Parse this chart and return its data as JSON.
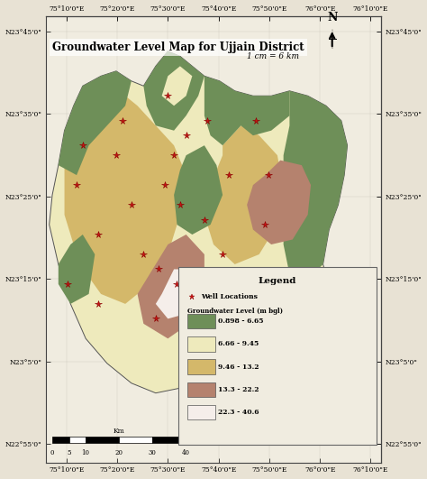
{
  "title": "Groundwater Level Map for Ujjain District",
  "outer_bg": "#e8e2d4",
  "map_bg": "#e8e2d4",
  "inner_bg": "#f0ece0",
  "colors": {
    "green": "#6e8f58",
    "light_yellow": "#eeeabc",
    "tan": "#d4b86a",
    "brown": "#b5826e",
    "white_pink": "#f5eeea"
  },
  "legend_items": [
    {
      "color": "#6e8f58",
      "label": "0.898 - 6.65"
    },
    {
      "color": "#eeeabc",
      "label": "6.66 - 9.45"
    },
    {
      "color": "#d4b86a",
      "label": "9.46 - 13.2"
    },
    {
      "color": "#b5826e",
      "label": "13.3 - 22.2"
    },
    {
      "color": "#f5eeea",
      "label": "22.3 - 40.6"
    }
  ],
  "xlim": [
    75.1,
    76.2
  ],
  "ylim": [
    22.88,
    23.78
  ],
  "xtick_pos": [
    75.1667,
    75.3333,
    75.5,
    75.6667,
    75.8333,
    76.0,
    76.1667
  ],
  "ytick_pos": [
    22.9167,
    23.0833,
    23.25,
    23.4167,
    23.5833,
    23.75
  ],
  "xlabel_ticks": [
    "75°10'0\"E",
    "75°20'0\"E",
    "75°30'0\"E",
    "75°40'0\"E",
    "75°50'0\"E",
    "76°0'0\"E",
    "76°10'0\"E"
  ],
  "ylabel_ticks": [
    "N22°55'0\"",
    "N23°5'0\"",
    "N23°15'0\"",
    "N23°25'0\"",
    "N23°35'0\"",
    "N23°45'0\""
  ],
  "scale_text": "1 cm = 6 km",
  "outer_boundary": [
    [
      75.14,
      23.48
    ],
    [
      75.16,
      23.55
    ],
    [
      75.19,
      23.6
    ],
    [
      75.22,
      23.64
    ],
    [
      75.28,
      23.66
    ],
    [
      75.33,
      23.67
    ],
    [
      75.38,
      23.65
    ],
    [
      75.42,
      23.64
    ],
    [
      75.46,
      23.68
    ],
    [
      75.5,
      23.71
    ],
    [
      75.54,
      23.7
    ],
    [
      75.58,
      23.68
    ],
    [
      75.62,
      23.66
    ],
    [
      75.67,
      23.65
    ],
    [
      75.72,
      23.63
    ],
    [
      75.78,
      23.62
    ],
    [
      75.84,
      23.62
    ],
    [
      75.9,
      23.63
    ],
    [
      75.96,
      23.62
    ],
    [
      76.02,
      23.6
    ],
    [
      76.07,
      23.57
    ],
    [
      76.09,
      23.52
    ],
    [
      76.08,
      23.46
    ],
    [
      76.06,
      23.4
    ],
    [
      76.03,
      23.35
    ],
    [
      76.01,
      23.28
    ],
    [
      76.04,
      23.22
    ],
    [
      76.03,
      23.16
    ],
    [
      75.99,
      23.1
    ],
    [
      75.93,
      23.06
    ],
    [
      75.86,
      23.04
    ],
    [
      75.78,
      23.04
    ],
    [
      75.7,
      23.06
    ],
    [
      75.62,
      23.05
    ],
    [
      75.54,
      23.03
    ],
    [
      75.46,
      23.02
    ],
    [
      75.38,
      23.04
    ],
    [
      75.3,
      23.08
    ],
    [
      75.23,
      23.13
    ],
    [
      75.18,
      23.2
    ],
    [
      75.14,
      23.28
    ],
    [
      75.11,
      23.36
    ],
    [
      75.12,
      23.42
    ]
  ],
  "well_locations": [
    [
      75.22,
      23.52
    ],
    [
      75.35,
      23.57
    ],
    [
      75.2,
      23.44
    ],
    [
      75.33,
      23.5
    ],
    [
      75.5,
      23.62
    ],
    [
      75.56,
      23.54
    ],
    [
      75.63,
      23.57
    ],
    [
      75.79,
      23.57
    ],
    [
      75.7,
      23.46
    ],
    [
      75.83,
      23.46
    ],
    [
      75.49,
      23.44
    ],
    [
      75.38,
      23.4
    ],
    [
      75.54,
      23.4
    ],
    [
      75.62,
      23.37
    ],
    [
      75.27,
      23.34
    ],
    [
      75.42,
      23.3
    ],
    [
      75.47,
      23.27
    ],
    [
      75.53,
      23.24
    ],
    [
      75.58,
      23.24
    ],
    [
      75.68,
      23.3
    ],
    [
      75.17,
      23.24
    ],
    [
      75.27,
      23.2
    ],
    [
      75.46,
      23.17
    ],
    [
      75.7,
      23.17
    ],
    [
      75.82,
      23.36
    ],
    [
      75.52,
      23.5
    ]
  ]
}
